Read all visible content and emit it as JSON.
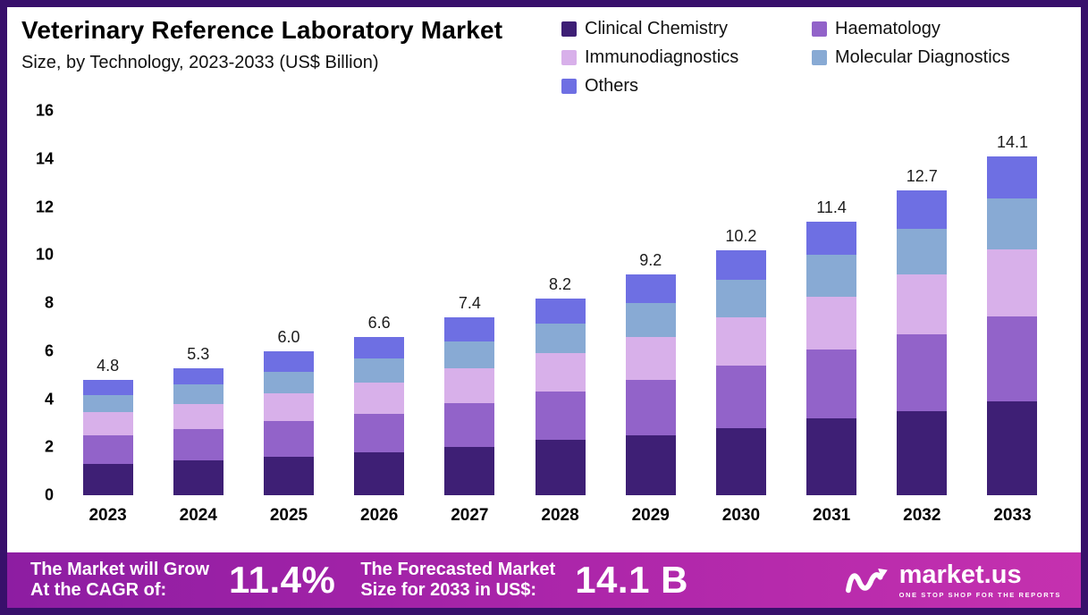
{
  "header": {
    "title": "Veterinary Reference Laboratory Market",
    "subtitle": "Size, by Technology, 2023-2033 (US$ Billion)"
  },
  "chart_data": {
    "type": "bar",
    "stacked": true,
    "title": "Veterinary Reference Laboratory Market Size, by Technology, 2023-2033 (US$ Billion)",
    "categories": [
      "2023",
      "2024",
      "2025",
      "2026",
      "2027",
      "2028",
      "2029",
      "2030",
      "2031",
      "2032",
      "2033"
    ],
    "series": [
      {
        "name": "Clinical Chemistry",
        "color": "#3e1f75",
        "values": [
          1.3,
          1.45,
          1.6,
          1.8,
          2.0,
          2.3,
          2.5,
          2.8,
          3.2,
          3.5,
          3.9
        ]
      },
      {
        "name": "Haematology",
        "color": "#9263c9",
        "values": [
          1.2,
          1.3,
          1.5,
          1.6,
          1.85,
          2.0,
          2.3,
          2.6,
          2.85,
          3.2,
          3.55
        ]
      },
      {
        "name": "Immunodiagnostics",
        "color": "#d8b0ea",
        "values": [
          0.95,
          1.05,
          1.15,
          1.3,
          1.45,
          1.6,
          1.8,
          2.0,
          2.2,
          2.5,
          2.8
        ]
      },
      {
        "name": "Molecular Diagnostics",
        "color": "#88aad4",
        "values": [
          0.7,
          0.8,
          0.9,
          1.0,
          1.1,
          1.25,
          1.4,
          1.55,
          1.75,
          1.9,
          2.1
        ]
      },
      {
        "name": "Others",
        "color": "#6e6fe3",
        "values": [
          0.65,
          0.7,
          0.85,
          0.9,
          1.0,
          1.05,
          1.2,
          1.25,
          1.4,
          1.6,
          1.75
        ]
      }
    ],
    "totals": [
      4.8,
      5.3,
      6.0,
      6.6,
      7.4,
      8.2,
      9.2,
      10.2,
      11.4,
      12.7,
      14.1
    ],
    "xlabel": "",
    "ylabel": "",
    "ylim": [
      0,
      16
    ],
    "yticks": [
      0,
      2,
      4,
      6,
      8,
      10,
      12,
      14,
      16
    ],
    "grid": false,
    "legend_position": "top-right"
  },
  "footer": {
    "cagr_label": "The Market will Grow\nAt the CAGR of:",
    "cagr_value": "11.4%",
    "forecast_label": "The Forecasted Market\nSize for 2033 in US$:",
    "forecast_value": "14.1 B",
    "brand": "market.us",
    "tagline": "ONE STOP SHOP FOR THE REPORTS"
  },
  "colors": {
    "frame_border": "#38106b",
    "banner_gradient_start": "#8d1da2",
    "banner_gradient_end": "#c531af",
    "text": "#000000",
    "banner_text": "#ffffff"
  }
}
